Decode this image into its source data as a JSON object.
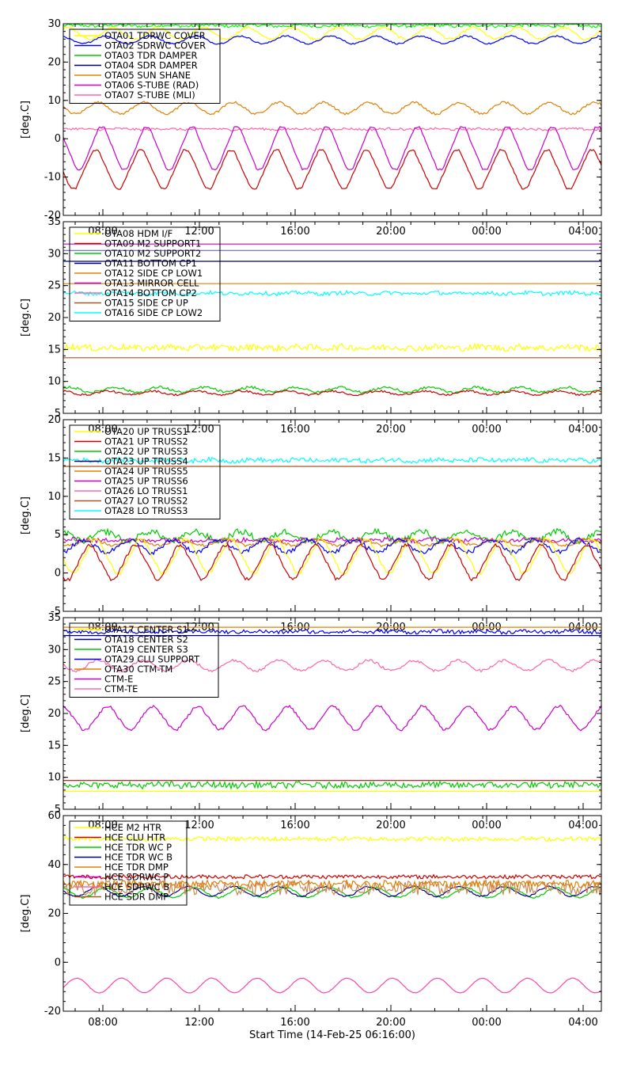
{
  "chart_data": {
    "type": "line",
    "x_tick_labels": [
      "08:00",
      "12:00",
      "16:00",
      "20:00",
      "00:00",
      "04:00"
    ],
    "x_title": "Start Time (14-Feb-25 06:16:00)",
    "panels": [
      {
        "ylabel": "[deg.C]",
        "ylim": [
          -20,
          30
        ],
        "yticks": [
          -20,
          -10,
          0,
          10,
          20,
          30
        ],
        "legend": [
          {
            "name": "OTA01 TDRWC COVER",
            "color": "#ffff00"
          },
          {
            "name": "OTA02 SDRWC COVER",
            "color": "#0000ff"
          },
          {
            "name": "OTA03 TDR DAMPER",
            "color": "#00cc00"
          },
          {
            "name": "OTA04 SDR DAMPER",
            "color": "#000080"
          },
          {
            "name": "OTA05 SUN SHANE",
            "color": "#e08000"
          },
          {
            "name": "OTA06 S-TUBE (RAD)",
            "color": "#cc00cc"
          },
          {
            "name": "OTA07 S-TUBE (MLI)",
            "color": "#ff66aa"
          }
        ],
        "series": [
          {
            "color": "#00ff00",
            "kind": "flat",
            "base": 29.5,
            "amp": 0.5,
            "noise": 0.4
          },
          {
            "color": "#ffff00",
            "kind": "wave",
            "base": 27.5,
            "amp": 1.5,
            "noise": 0.3
          },
          {
            "color": "#0000ff",
            "kind": "wave",
            "base": 25.8,
            "amp": 1.0,
            "noise": 0.2
          },
          {
            "color": "#e08000",
            "kind": "wave",
            "base": 8,
            "amp": 1.5,
            "noise": 0.3
          },
          {
            "color": "#ff66aa",
            "kind": "flat",
            "base": 2.5,
            "amp": 0.4,
            "noise": 0.3
          },
          {
            "color": "#cc00cc",
            "kind": "tri",
            "base": -2.5,
            "amp": 5.5,
            "noise": 0.2
          },
          {
            "color": "#cc0000",
            "kind": "tri",
            "base": -8,
            "amp": 5,
            "noise": 0.2
          }
        ]
      },
      {
        "ylabel": "[deg.C]",
        "ylim": [
          5,
          35
        ],
        "yticks": [
          5,
          10,
          15,
          20,
          25,
          30,
          35
        ],
        "legend": [
          {
            "name": "OTA08 HDM I/F",
            "color": "#ffff00"
          },
          {
            "name": "OTA09 M2 SUPPORT1",
            "color": "#cc0000"
          },
          {
            "name": "OTA10 M2 SUPPORT2",
            "color": "#00cc00"
          },
          {
            "name": "OTA11 BOTTOM CP1",
            "color": "#000080"
          },
          {
            "name": "OTA12 SIDE CP LOW1",
            "color": "#e08000"
          },
          {
            "name": "OTA13 MIRROR CELL",
            "color": "#cc00cc"
          },
          {
            "name": "OTA14 BOTTOM CP2",
            "color": "#ff66aa"
          },
          {
            "name": "OTA15 SIDE CP UP",
            "color": "#aa5522"
          },
          {
            "name": "OTA16 SIDE CP LOW2",
            "color": "#00ffff"
          }
        ],
        "series": [
          {
            "color": "#cc00cc",
            "kind": "flat",
            "base": 31.5,
            "amp": 0,
            "noise": 0
          },
          {
            "color": "#6666cc",
            "kind": "flat",
            "base": 30.5,
            "amp": 0,
            "noise": 0
          },
          {
            "color": "#000080",
            "kind": "flat",
            "base": 28.8,
            "amp": 0,
            "noise": 0
          },
          {
            "color": "#e08000",
            "kind": "flat",
            "base": 25.3,
            "amp": 0,
            "noise": 0
          },
          {
            "color": "#00ffff",
            "kind": "flat",
            "base": 23.8,
            "amp": 0.3,
            "noise": 0.3
          },
          {
            "color": "#ffff00",
            "kind": "flat",
            "base": 15.3,
            "amp": 0.4,
            "noise": 0.5
          },
          {
            "color": "#aa5522",
            "kind": "flat",
            "base": 13.7,
            "amp": 0,
            "noise": 0
          },
          {
            "color": "#00cc00",
            "kind": "wave",
            "base": 8.7,
            "amp": 0.4,
            "noise": 0.2
          },
          {
            "color": "#cc0000",
            "kind": "wave",
            "base": 8.2,
            "amp": 0.3,
            "noise": 0.15
          }
        ]
      },
      {
        "ylabel": "[deg.C]",
        "ylim": [
          -5,
          20
        ],
        "yticks": [
          -5,
          0,
          5,
          10,
          15,
          20
        ],
        "legend": [
          {
            "name": "OTA20 UP TRUSS1",
            "color": "#ffff00"
          },
          {
            "name": "OTA21 UP TRUSS2",
            "color": "#cc0000"
          },
          {
            "name": "OTA22 UP TRUSS3",
            "color": "#00cc00"
          },
          {
            "name": "OTA23 UP TRUSS4",
            "color": "#000080"
          },
          {
            "name": "OTA24 UP TRUSS5",
            "color": "#e08000"
          },
          {
            "name": "OTA25 UP TRUSS6",
            "color": "#cc00cc"
          },
          {
            "name": "OTA26 LO TRUSS1",
            "color": "#ff66aa"
          },
          {
            "name": "OTA27 LO TRUSS2",
            "color": "#aa5522"
          },
          {
            "name": "OTA28 LO TRUSS3",
            "color": "#00ffff"
          }
        ],
        "series": [
          {
            "color": "#00ffff",
            "kind": "flat",
            "base": 14.7,
            "amp": 0.3,
            "noise": 0.3
          },
          {
            "color": "#aa5522",
            "kind": "flat",
            "base": 13.9,
            "amp": 0,
            "noise": 0
          },
          {
            "color": "#00cc00",
            "kind": "wave",
            "base": 4.8,
            "amp": 0.6,
            "noise": 0.4
          },
          {
            "color": "#cc00cc",
            "kind": "flat",
            "base": 4.3,
            "amp": 0.3,
            "noise": 0.3
          },
          {
            "color": "#e08000",
            "kind": "wave",
            "base": 4.0,
            "amp": 0.4,
            "noise": 0.2
          },
          {
            "color": "#0000ff",
            "kind": "wave",
            "base": 3.5,
            "amp": 0.8,
            "noise": 0.3
          },
          {
            "color": "#ffff00",
            "kind": "tri",
            "base": 2.2,
            "amp": 2.2,
            "noise": 0.2
          },
          {
            "color": "#cc0000",
            "kind": "tri",
            "base": 1.4,
            "amp": 2.2,
            "noise": 0.2
          }
        ]
      },
      {
        "ylabel": "[deg.C]",
        "ylim": [
          5,
          35
        ],
        "yticks": [
          5,
          10,
          15,
          20,
          25,
          30,
          35
        ],
        "legend": [
          {
            "name": "OTA17 CENTER S1",
            "color": "#ffff00"
          },
          {
            "name": "OTA18 CENTER S2",
            "color": "#000080"
          },
          {
            "name": "OTA19 CENTER S3",
            "color": "#00cc00"
          },
          {
            "name": "OTA29 CLU SUPPORT",
            "color": "#0000ff"
          },
          {
            "name": "OTA30 CTM-TM",
            "color": "#e08000"
          },
          {
            "name": "CTM-E",
            "color": "#cc00cc"
          },
          {
            "name": "CTM-TE",
            "color": "#ff66aa"
          }
        ],
        "series": [
          {
            "color": "#e08000",
            "kind": "flat",
            "base": 33.5,
            "amp": 0,
            "noise": 0
          },
          {
            "color": "#0000ff",
            "kind": "flat",
            "base": 32.8,
            "amp": 0.3,
            "noise": 0.3
          },
          {
            "color": "#000080",
            "kind": "flat",
            "base": 32.2,
            "amp": 0,
            "noise": 0
          },
          {
            "color": "#ff66aa",
            "kind": "wave",
            "base": 27.5,
            "amp": 0.8,
            "noise": 0.2
          },
          {
            "color": "#cc00cc",
            "kind": "tri",
            "base": 19.3,
            "amp": 1.8,
            "noise": 0.2
          },
          {
            "color": "#cc0000",
            "kind": "flat",
            "base": 9.5,
            "amp": 0,
            "noise": 0
          },
          {
            "color": "#00cc00",
            "kind": "flat",
            "base": 8.8,
            "amp": 0.3,
            "noise": 0.5
          },
          {
            "color": "#ffff00",
            "kind": "flat",
            "base": 7.8,
            "amp": 0,
            "noise": 0
          }
        ]
      },
      {
        "ylabel": "[deg.C]",
        "ylim": [
          -20,
          60
        ],
        "yticks": [
          -20,
          0,
          20,
          40,
          60
        ],
        "legend": [
          {
            "name": "HCE M2 HTR",
            "color": "#ffff00"
          },
          {
            "name": "HCE CLU HTR",
            "color": "#cc0000"
          },
          {
            "name": "HCE TDR WC P",
            "color": "#00cc00"
          },
          {
            "name": "HCE TDR WC B",
            "color": "#000080"
          },
          {
            "name": "HCE TDR DMP",
            "color": "#e08000"
          },
          {
            "name": "HCE SDRWC P",
            "color": "#cc00cc"
          },
          {
            "name": "HCE SDRWC B",
            "color": "#ff66aa"
          },
          {
            "name": "HCE SDR DMP",
            "color": "#aa5522"
          }
        ],
        "series": [
          {
            "color": "#ffff00",
            "kind": "flat",
            "base": 50.5,
            "amp": 0.3,
            "noise": 0.9
          },
          {
            "color": "#cc0000",
            "kind": "flat",
            "base": 35,
            "amp": 0.3,
            "noise": 0.8
          },
          {
            "color": "#00cc00",
            "kind": "wave",
            "base": 28.5,
            "amp": 2.0,
            "noise": 0.3
          },
          {
            "color": "#000080",
            "kind": "wave",
            "base": 29.0,
            "amp": 2.0,
            "noise": 0.3
          },
          {
            "color": "#cc8855",
            "kind": "flat",
            "base": 30.5,
            "amp": 1.0,
            "noise": 3.0
          },
          {
            "color": "#e08000",
            "kind": "flat",
            "base": 32,
            "amp": 0.3,
            "noise": 1.5
          },
          {
            "color": "#ff44aa",
            "kind": "wave",
            "base": -9.5,
            "amp": 3.0,
            "noise": 0.1
          }
        ]
      }
    ]
  }
}
